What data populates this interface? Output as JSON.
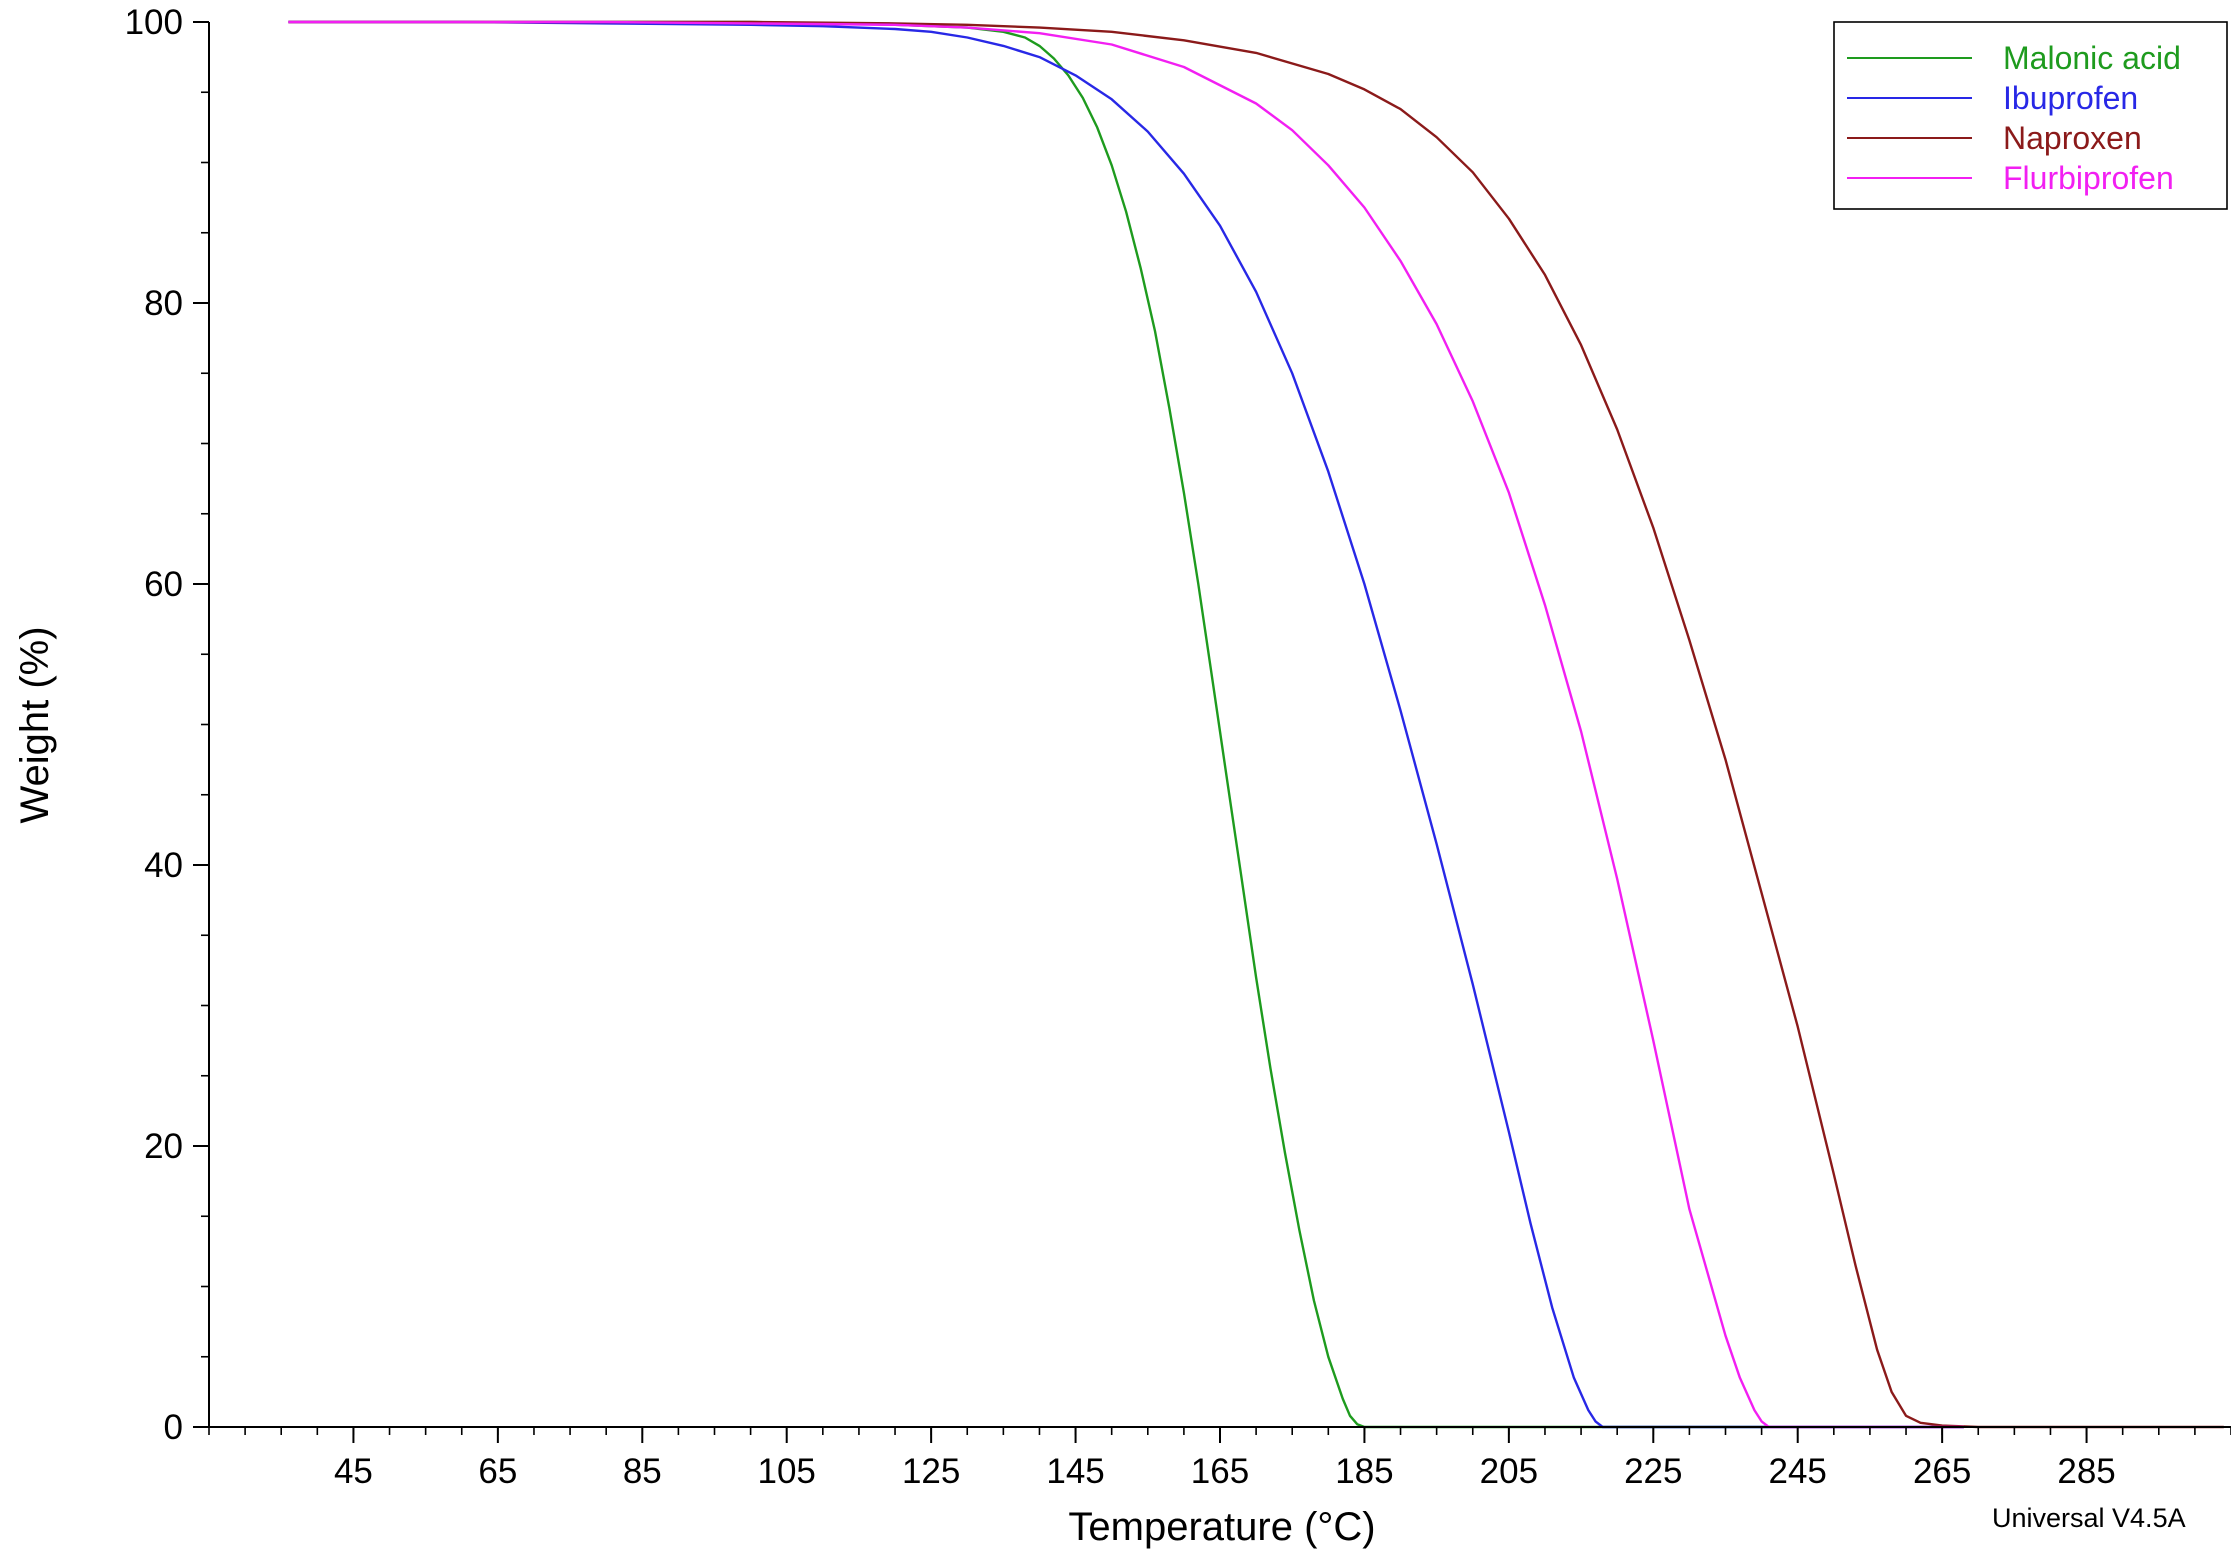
{
  "chart_data": {
    "type": "line",
    "xlabel": "Temperature (°C)",
    "ylabel": "Weight (%)",
    "xlim": [
      25,
      305
    ],
    "ylim": [
      0,
      100
    ],
    "x_ticks": [
      45,
      65,
      85,
      105,
      125,
      145,
      165,
      185,
      205,
      225,
      245,
      265,
      285
    ],
    "x_minor_step": 5,
    "y_ticks": [
      0,
      20,
      40,
      60,
      80,
      100
    ],
    "y_minor_step": 5,
    "grid": false,
    "legend_position": "top-right",
    "footer": "Universal V4.5A",
    "series": [
      {
        "name": "Malonic acid",
        "color": "#1e9b1e",
        "x": [
          36,
          60,
          80,
          100,
          110,
          120,
          125,
          130,
          135,
          138,
          140,
          142,
          144,
          146,
          148,
          150,
          152,
          154,
          156,
          158,
          160,
          162,
          164,
          166,
          168,
          170,
          172,
          174,
          176,
          178,
          180,
          182,
          183,
          184,
          185,
          190,
          200,
          220,
          240,
          260,
          268
        ],
        "y": [
          100,
          100,
          100,
          100,
          99.9,
          99.8,
          99.7,
          99.6,
          99.3,
          98.9,
          98.3,
          97.4,
          96.2,
          94.6,
          92.5,
          89.8,
          86.5,
          82.5,
          78.0,
          72.5,
          66.5,
          60.0,
          53.0,
          46.0,
          39.0,
          32.0,
          25.5,
          19.5,
          14.0,
          9.0,
          5.0,
          2.0,
          0.8,
          0.2,
          0.0,
          0.0,
          0.0,
          0.0,
          0.0,
          0.0,
          0.0
        ]
      },
      {
        "name": "Ibuprofen",
        "color": "#2828e6",
        "x": [
          36,
          60,
          80,
          100,
          110,
          120,
          125,
          130,
          135,
          140,
          145,
          150,
          155,
          160,
          165,
          170,
          175,
          180,
          185,
          190,
          195,
          200,
          205,
          208,
          211,
          214,
          216,
          217,
          218,
          220,
          240,
          260,
          268
        ],
        "y": [
          100,
          100,
          99.9,
          99.8,
          99.7,
          99.5,
          99.3,
          98.9,
          98.3,
          97.5,
          96.2,
          94.5,
          92.2,
          89.2,
          85.5,
          80.8,
          75.0,
          68.0,
          60.0,
          51.0,
          41.5,
          31.5,
          21.0,
          14.5,
          8.5,
          3.5,
          1.2,
          0.4,
          0.0,
          0.0,
          0.0,
          0.0,
          0.0
        ]
      },
      {
        "name": "Naproxen",
        "color": "#8b1a1a",
        "x": [
          36,
          60,
          80,
          100,
          120,
          130,
          140,
          150,
          160,
          170,
          180,
          185,
          190,
          195,
          200,
          205,
          210,
          215,
          220,
          225,
          230,
          235,
          240,
          245,
          250,
          253,
          256,
          258,
          260,
          262,
          265,
          270,
          280,
          290,
          304
        ],
        "y": [
          100,
          100,
          100,
          100,
          99.9,
          99.8,
          99.6,
          99.3,
          98.7,
          97.8,
          96.3,
          95.2,
          93.8,
          91.8,
          89.3,
          86.0,
          82.0,
          77.0,
          71.0,
          64.0,
          56.0,
          47.5,
          38.0,
          28.5,
          18.0,
          11.5,
          5.5,
          2.5,
          0.8,
          0.3,
          0.1,
          0.0,
          0.0,
          0.0,
          0.0
        ]
      },
      {
        "name": "Flurbiprofen",
        "color": "#f21ff2",
        "x": [
          36,
          60,
          80,
          100,
          120,
          130,
          140,
          150,
          160,
          170,
          175,
          180,
          185,
          190,
          195,
          200,
          205,
          210,
          215,
          220,
          225,
          230,
          235,
          237,
          239,
          240,
          241,
          245,
          260,
          268
        ],
        "y": [
          100,
          100,
          100,
          99.9,
          99.8,
          99.6,
          99.2,
          98.4,
          96.8,
          94.2,
          92.3,
          89.8,
          86.8,
          83.0,
          78.5,
          73.0,
          66.5,
          58.5,
          49.5,
          39.0,
          27.5,
          15.5,
          6.5,
          3.5,
          1.2,
          0.4,
          0.0,
          0.0,
          0.0,
          0.0
        ]
      }
    ]
  }
}
